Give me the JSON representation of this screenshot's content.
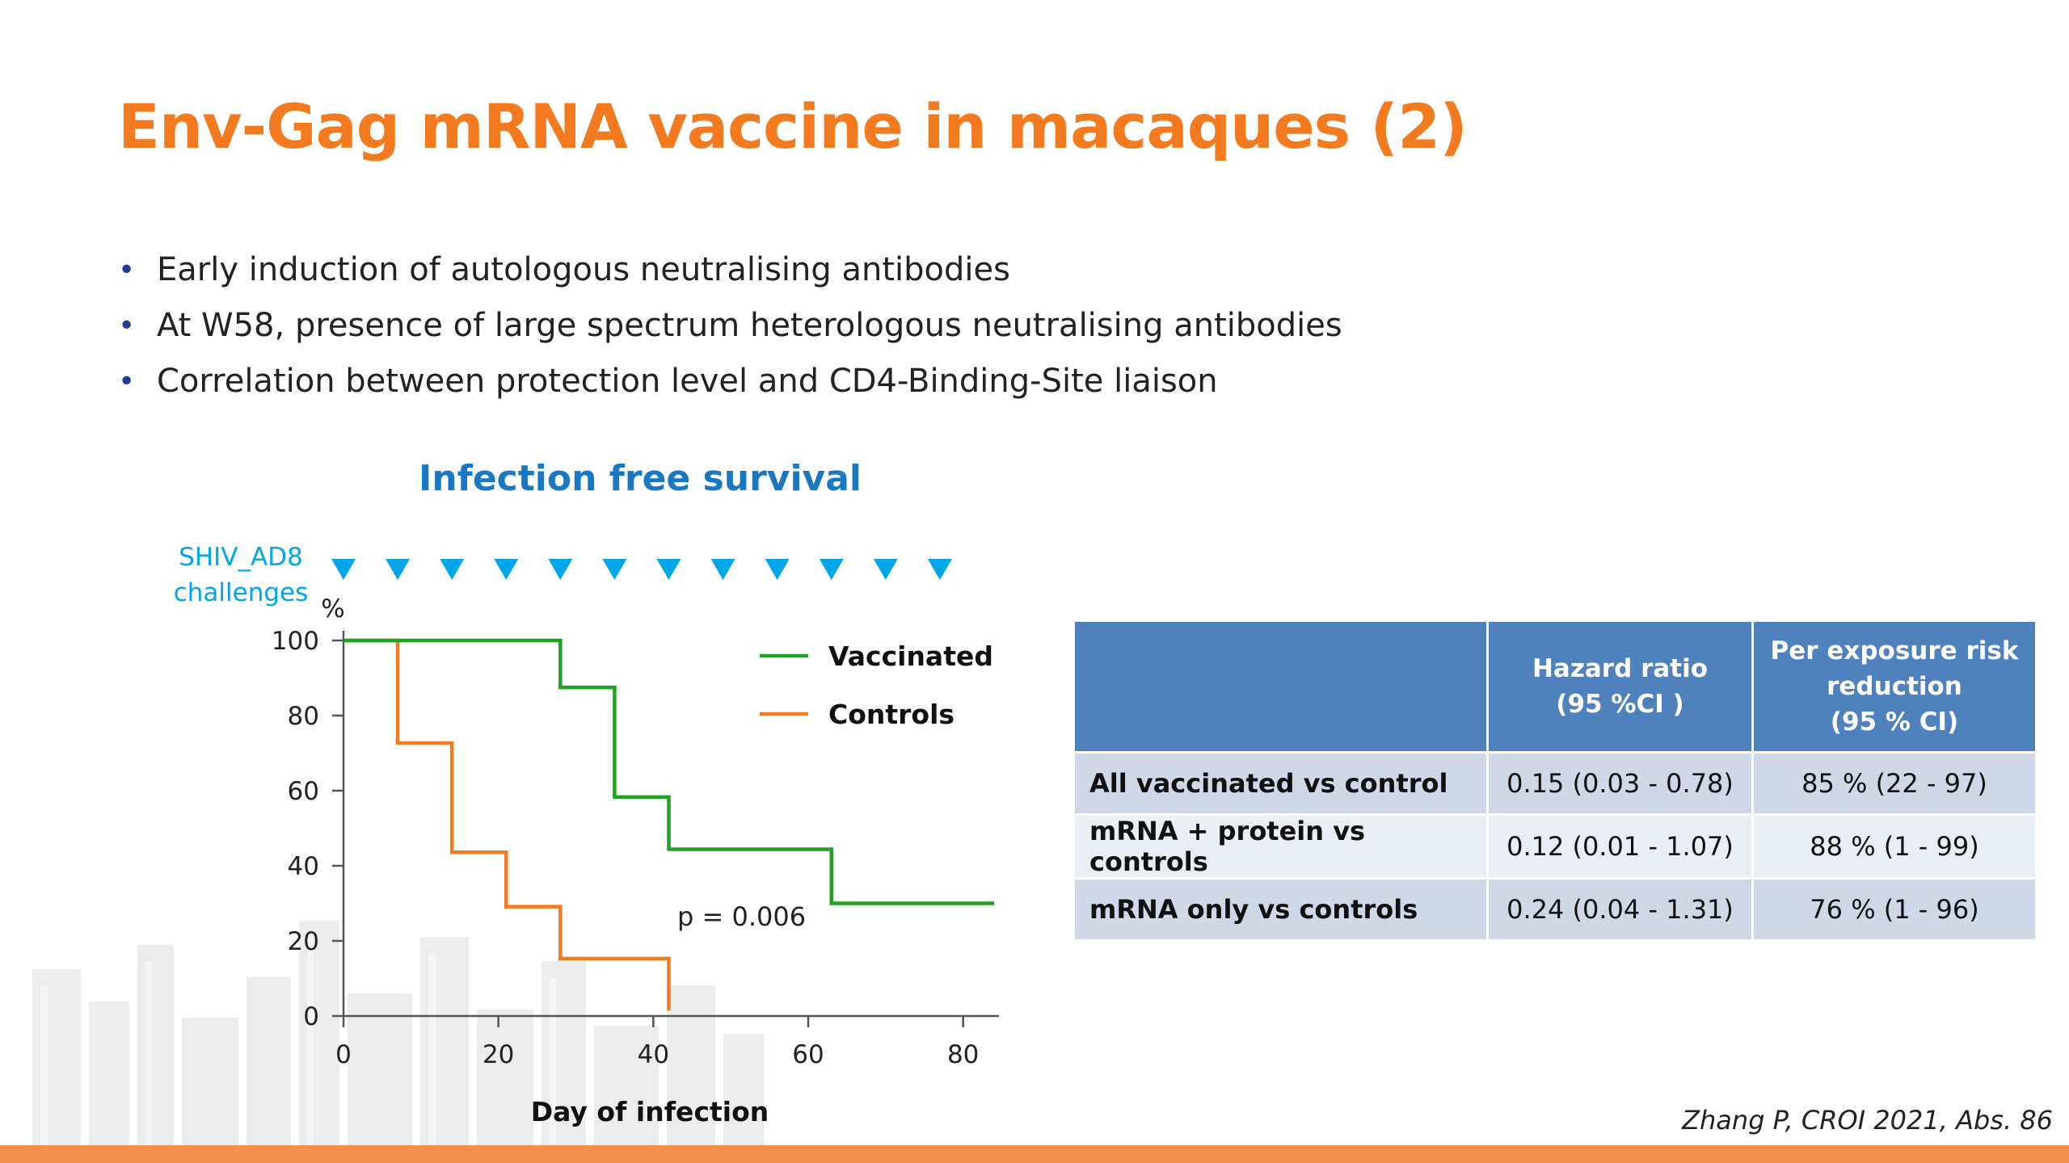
{
  "slide": {
    "title": "Env-Gag mRNA vaccine in macaques (2)",
    "bullets": [
      "Early induction of autologous neutralising antibodies",
      "At W58, presence of large spectrum heterologous neutralising antibodies",
      "Correlation between protection level and CD4-Binding-Site liaison"
    ],
    "bullet_glyph": "•",
    "source": "Zhang P, CROI 2021, Abs. 86"
  },
  "colors": {
    "title": "#f47a1f",
    "chart_title": "#1a78c2",
    "challenge_marker": "#00a6e8",
    "vaccinated": "#21a121",
    "controls": "#f47a1f",
    "table_header": "#4f81bd",
    "table_row_odd": "#d0d8e8",
    "table_row_even": "#e9edf4",
    "bottom_bar": "#f0904c"
  },
  "chart_data": {
    "type": "line",
    "subtype": "step",
    "title": "Infection free survival",
    "xlabel": "Day of infection",
    "ylabel": "%",
    "xlim": [
      0,
      84
    ],
    "ylim": [
      0,
      100
    ],
    "xticks": [
      0,
      20,
      40,
      60,
      80
    ],
    "yticks": [
      0,
      20,
      40,
      60,
      80,
      100
    ],
    "grid": false,
    "legend_position": "top-right",
    "challenge_label": [
      "SHIV_AD8",
      "challenges"
    ],
    "challenge_days": [
      0,
      7,
      14,
      21,
      28,
      35,
      42,
      49,
      56,
      63,
      70,
      77
    ],
    "series": [
      {
        "name": "Vaccinated",
        "color": "#21a121",
        "x": [
          0,
          28,
          28,
          35,
          35,
          42,
          42,
          63,
          63,
          84
        ],
        "y": [
          100,
          100,
          87.5,
          87.5,
          58.3,
          58.3,
          44.4,
          44.4,
          30,
          30
        ]
      },
      {
        "name": "Controls",
        "color": "#f47a1f",
        "x": [
          0,
          7,
          7,
          14,
          14,
          21,
          21,
          28,
          28,
          42,
          42
        ],
        "y": [
          100,
          100,
          72.7,
          72.7,
          43.6,
          43.6,
          29.1,
          29.1,
          15.3,
          15.3,
          1.5
        ]
      }
    ],
    "annotations": [
      {
        "text": "p = 0.006"
      }
    ]
  },
  "table": {
    "headers": [
      [
        ""
      ],
      [
        "Hazard ratio",
        "(95 %CI )"
      ],
      [
        "Per exposure risk",
        "reduction",
        "(95 % CI)"
      ]
    ],
    "rows": [
      {
        "label": "All vaccinated vs control",
        "hazard": "0.15 (0.03 - 0.78)",
        "reduction": "85 % (22 - 97)"
      },
      {
        "label": "mRNA + protein vs controls",
        "hazard": "0.12 (0.01 - 1.07)",
        "reduction": "88 % (1 - 99)"
      },
      {
        "label": "mRNA only vs controls",
        "hazard": "0.24 (0.04 - 1.31)",
        "reduction": "76 % (1 - 96)"
      }
    ]
  }
}
